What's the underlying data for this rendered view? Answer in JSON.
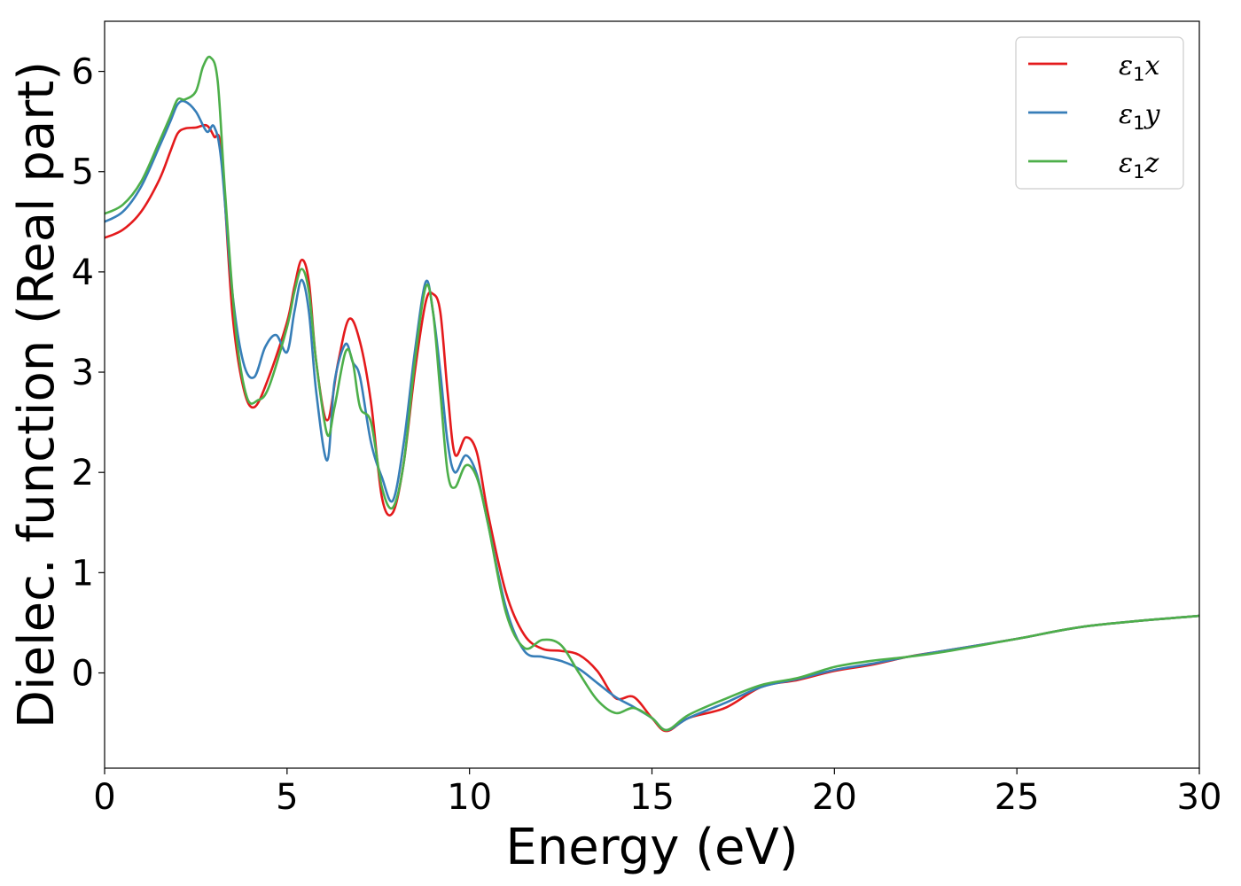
{
  "chart_data": {
    "type": "line",
    "title": "",
    "xlabel": "Energy (eV)",
    "ylabel": "Dielec. function (Real part)",
    "xlim": [
      0,
      30
    ],
    "ylim": [
      -0.95,
      6.5
    ],
    "xticks": [
      0,
      5,
      10,
      15,
      20,
      25,
      30
    ],
    "yticks": [
      0,
      1,
      2,
      3,
      4,
      5,
      6
    ],
    "grid": false,
    "legend_position": "top-right",
    "series": [
      {
        "name": "ε1x",
        "symbol": "ε",
        "subscript": "1",
        "suffix": "x",
        "color": "#e41a1c",
        "x": [
          0,
          0.5,
          1.0,
          1.5,
          1.8,
          2.0,
          2.2,
          2.5,
          2.8,
          3.0,
          3.2,
          3.5,
          3.8,
          4.1,
          4.5,
          5.0,
          5.2,
          5.4,
          5.6,
          5.8,
          6.1,
          6.4,
          6.7,
          7.0,
          7.3,
          7.6,
          7.9,
          8.2,
          8.5,
          8.8,
          9.0,
          9.2,
          9.4,
          9.6,
          9.9,
          10.2,
          10.5,
          11.0,
          11.5,
          12.0,
          12.5,
          13.0,
          13.5,
          14.0,
          14.5,
          15.0,
          15.4,
          16.0,
          17.0,
          18.0,
          19.0,
          20.0,
          21.0,
          22.0,
          23.0,
          25.0,
          27.0,
          30.0
        ],
        "y": [
          4.34,
          4.42,
          4.6,
          4.92,
          5.2,
          5.38,
          5.43,
          5.44,
          5.46,
          5.35,
          5.2,
          3.6,
          2.85,
          2.65,
          2.95,
          3.5,
          3.85,
          4.12,
          3.9,
          3.1,
          2.52,
          3.1,
          3.53,
          3.3,
          2.7,
          1.75,
          1.6,
          2.1,
          3.0,
          3.7,
          3.78,
          3.6,
          2.8,
          2.18,
          2.35,
          2.2,
          1.6,
          0.8,
          0.38,
          0.24,
          0.22,
          0.18,
          0.02,
          -0.25,
          -0.24,
          -0.45,
          -0.58,
          -0.45,
          -0.35,
          -0.14,
          -0.07,
          0.02,
          0.08,
          0.16,
          0.22,
          0.34,
          0.47,
          0.57
        ]
      },
      {
        "name": "ε1y",
        "symbol": "ε",
        "subscript": "1",
        "suffix": "y",
        "color": "#377eb8",
        "x": [
          0,
          0.5,
          1.0,
          1.5,
          1.8,
          2.0,
          2.2,
          2.5,
          2.8,
          3.0,
          3.2,
          3.5,
          3.8,
          4.1,
          4.4,
          4.7,
          5.0,
          5.2,
          5.4,
          5.6,
          5.8,
          6.1,
          6.3,
          6.6,
          6.8,
          7.0,
          7.3,
          7.6,
          7.9,
          8.2,
          8.5,
          8.8,
          9.0,
          9.2,
          9.4,
          9.6,
          9.9,
          10.2,
          10.5,
          11.0,
          11.5,
          12.0,
          12.5,
          13.0,
          13.5,
          14.0,
          14.5,
          15.0,
          15.4,
          16.0,
          17.0,
          18.0,
          19.0,
          20.0,
          21.0,
          22.0,
          23.0,
          25.0,
          27.0,
          30.0
        ],
        "y": [
          4.5,
          4.6,
          4.85,
          5.25,
          5.5,
          5.67,
          5.7,
          5.6,
          5.4,
          5.45,
          5.1,
          3.8,
          3.1,
          2.95,
          3.25,
          3.37,
          3.2,
          3.6,
          3.92,
          3.6,
          2.8,
          2.12,
          2.9,
          3.28,
          3.1,
          2.95,
          2.3,
          1.95,
          1.72,
          2.3,
          3.2,
          3.9,
          3.6,
          3.0,
          2.3,
          2.0,
          2.17,
          1.98,
          1.5,
          0.65,
          0.22,
          0.16,
          0.12,
          0.04,
          -0.1,
          -0.24,
          -0.34,
          -0.45,
          -0.57,
          -0.45,
          -0.3,
          -0.14,
          -0.06,
          0.03,
          0.09,
          0.16,
          0.22,
          0.34,
          0.47,
          0.57
        ]
      },
      {
        "name": "ε1z",
        "symbol": "ε",
        "subscript": "1",
        "suffix": "z",
        "color": "#4daf4a",
        "x": [
          0,
          0.5,
          1.0,
          1.5,
          1.8,
          2.0,
          2.2,
          2.5,
          2.7,
          2.9,
          3.1,
          3.3,
          3.6,
          3.9,
          4.2,
          4.5,
          5.0,
          5.2,
          5.4,
          5.6,
          5.8,
          6.1,
          6.3,
          6.6,
          6.8,
          7.0,
          7.3,
          7.6,
          7.9,
          8.2,
          8.5,
          8.8,
          9.0,
          9.2,
          9.4,
          9.6,
          9.9,
          10.2,
          10.5,
          11.0,
          11.5,
          12.0,
          12.5,
          13.0,
          13.5,
          14.0,
          14.5,
          15.0,
          15.4,
          16.0,
          17.0,
          18.0,
          19.0,
          20.0,
          21.0,
          22.0,
          23.0,
          25.0,
          27.0,
          30.0
        ],
        "y": [
          4.58,
          4.67,
          4.9,
          5.3,
          5.55,
          5.72,
          5.72,
          5.8,
          6.05,
          6.14,
          5.9,
          4.8,
          3.4,
          2.75,
          2.72,
          2.85,
          3.45,
          3.8,
          4.03,
          3.8,
          3.1,
          2.38,
          2.65,
          3.2,
          3.1,
          2.65,
          2.5,
          1.85,
          1.65,
          2.1,
          3.1,
          3.85,
          3.6,
          2.8,
          2.0,
          1.85,
          2.07,
          1.95,
          1.5,
          0.6,
          0.25,
          0.33,
          0.28,
          0.0,
          -0.27,
          -0.4,
          -0.35,
          -0.45,
          -0.57,
          -0.42,
          -0.26,
          -0.12,
          -0.05,
          0.06,
          0.12,
          0.16,
          0.21,
          0.34,
          0.47,
          0.57
        ]
      }
    ]
  }
}
